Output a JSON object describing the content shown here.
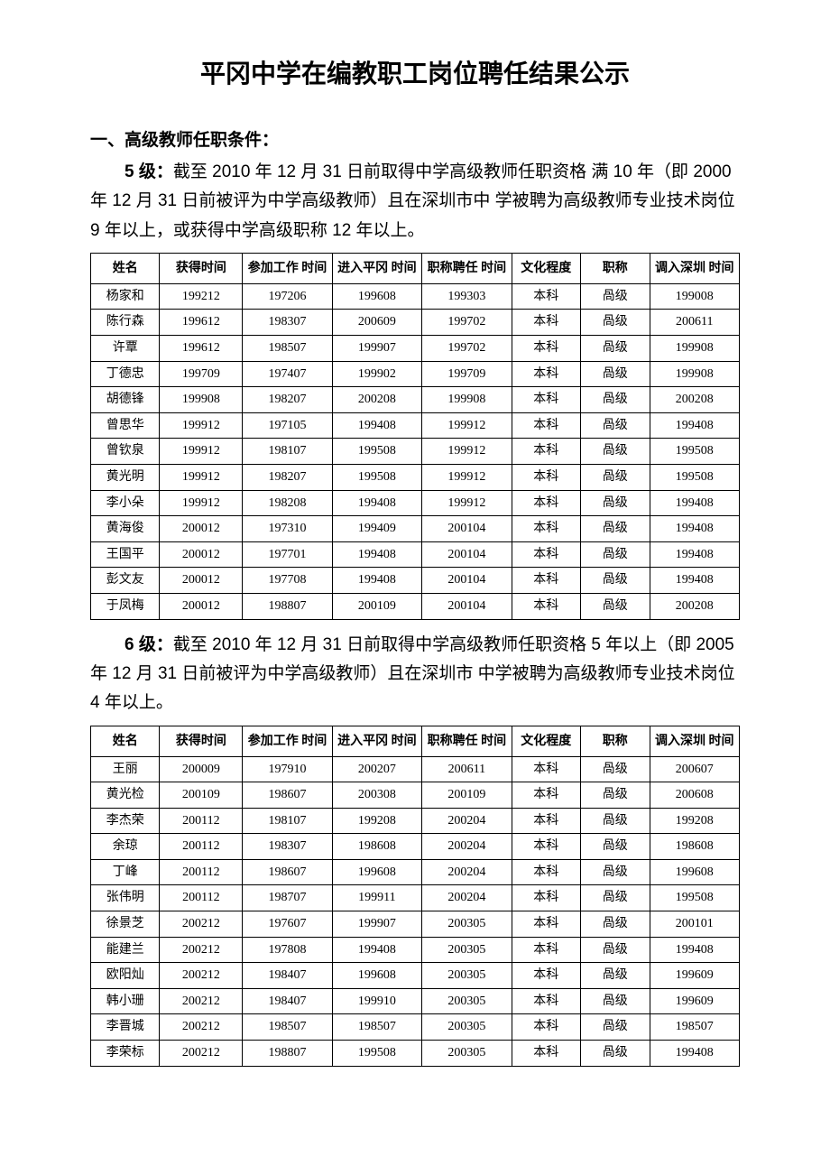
{
  "title": "平冈中学在编教职工岗位聘任结果公示",
  "section1_heading": "一、高级教师任职条件：",
  "level5_label": "5 级：",
  "level5_text": "截至 2010 年 12 月 31 日前取得中学高级教师任职资格 满 10 年（即 2000 年 12 月 31 日前被评为中学高级教师）且在深圳市中 学被聘为高级教师专业技术岗位 9 年以上，或获得中学高级职称 12 年以上。",
  "level6_label": "6 级：",
  "level6_text": "截至 2010 年 12 月 31 日前取得中学高级教师任职资格 5 年以上（即 2005 年 12 月 31 日前被评为中学高级教师）且在深圳市 中学被聘为高级教师专业技术岗位 4 年以上。",
  "table_headers": {
    "name": "姓名",
    "obtain_time": "获得时间",
    "work_time": "参加工作 时间",
    "enter_time": "进入平冈 时间",
    "title_time": "职称聘任 时间",
    "education": "文化程度",
    "rank": "职称",
    "sz_time": "调入深圳 时间"
  },
  "table5_rows": [
    [
      "杨家和",
      "199212",
      "197206",
      "199608",
      "199303",
      "本科",
      "咼级",
      "199008"
    ],
    [
      "陈行森",
      "199612",
      "198307",
      "200609",
      "199702",
      "本科",
      "咼级",
      "200611"
    ],
    [
      "许覃",
      "199612",
      "198507",
      "199907",
      "199702",
      "本科",
      "咼级",
      "199908"
    ],
    [
      "丁德忠",
      "199709",
      "197407",
      "199902",
      "199709",
      "本科",
      "咼级",
      "199908"
    ],
    [
      "胡德锋",
      "199908",
      "198207",
      "200208",
      "199908",
      "本科",
      "咼级",
      "200208"
    ],
    [
      "曾思华",
      "199912",
      "197105",
      "199408",
      "199912",
      "本科",
      "咼级",
      "199408"
    ],
    [
      "曾钦泉",
      "199912",
      "198107",
      "199508",
      "199912",
      "本科",
      "咼级",
      "199508"
    ],
    [
      "黄光明",
      "199912",
      "198207",
      "199508",
      "199912",
      "本科",
      "咼级",
      "199508"
    ],
    [
      "李小朵",
      "199912",
      "198208",
      "199408",
      "199912",
      "本科",
      "咼级",
      "199408"
    ],
    [
      "黄海俊",
      "200012",
      "197310",
      "199409",
      "200104",
      "本科",
      "咼级",
      "199408"
    ],
    [
      "王国平",
      "200012",
      "197701",
      "199408",
      "200104",
      "本科",
      "咼级",
      "199408"
    ],
    [
      "彭文友",
      "200012",
      "197708",
      "199408",
      "200104",
      "本科",
      "咼级",
      "199408"
    ],
    [
      "于凤梅",
      "200012",
      "198807",
      "200109",
      "200104",
      "本科",
      "咼级",
      "200208"
    ]
  ],
  "table6_rows": [
    [
      "王丽",
      "200009",
      "197910",
      "200207",
      "200611",
      "本科",
      "咼级",
      "200607"
    ],
    [
      "黄光检",
      "200109",
      "198607",
      "200308",
      "200109",
      "本科",
      "咼级",
      "200608"
    ],
    [
      "李杰荣",
      "200112",
      "198107",
      "199208",
      "200204",
      "本科",
      "咼级",
      "199208"
    ],
    [
      "余琼",
      "200112",
      "198307",
      "198608",
      "200204",
      "本科",
      "咼级",
      "198608"
    ],
    [
      "丁峰",
      "200112",
      "198607",
      "199608",
      "200204",
      "本科",
      "咼级",
      "199608"
    ],
    [
      "张伟明",
      "200112",
      "198707",
      "199911",
      "200204",
      "本科",
      "咼级",
      "199508"
    ],
    [
      "徐景芝",
      "200212",
      "197607",
      "199907",
      "200305",
      "本科",
      "咼级",
      "200101"
    ],
    [
      "能建兰",
      "200212",
      "197808",
      "199408",
      "200305",
      "本科",
      "咼级",
      "199408"
    ],
    [
      "欧阳灿",
      "200212",
      "198407",
      "199608",
      "200305",
      "本科",
      "咼级",
      "199609"
    ],
    [
      "韩小珊",
      "200212",
      "198407",
      "199910",
      "200305",
      "本科",
      "咼级",
      "199609"
    ],
    [
      "李晋城",
      "200212",
      "198507",
      "198507",
      "200305",
      "本科",
      "咼级",
      "198507"
    ],
    [
      "李荣标",
      "200212",
      "198807",
      "199508",
      "200305",
      "本科",
      "咼级",
      "199408"
    ]
  ]
}
